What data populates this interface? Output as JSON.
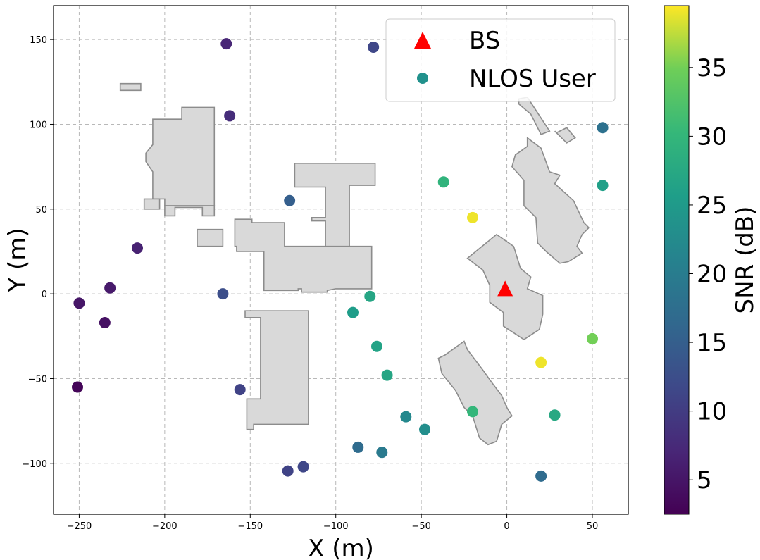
{
  "chart_data": {
    "type": "scatter",
    "xlabel": "X (m)",
    "ylabel": "Y (m)",
    "xlim": [
      -265,
      71
    ],
    "ylim": [
      -130,
      170
    ],
    "x_ticks": [
      -250,
      -200,
      -150,
      -100,
      -50,
      0,
      50
    ],
    "x_tick_labels": [
      "−250",
      "−200",
      "−150",
      "−100",
      "−50",
      "0",
      "50"
    ],
    "y_ticks": [
      -100,
      -50,
      0,
      50,
      100,
      150
    ],
    "y_tick_labels": [
      "−100",
      "−50",
      "0",
      "50",
      "100",
      "150"
    ],
    "grid": true,
    "legend": {
      "placement": "top-right",
      "entries": [
        {
          "label": "BS",
          "marker": "triangle",
          "color": "#ff0000"
        },
        {
          "label": "NLOS User",
          "marker": "circle",
          "color": "#21918c"
        }
      ]
    },
    "colorbar": {
      "label": "SNR (dB)",
      "colormap": "viridis",
      "range": [
        2.5,
        39.5
      ],
      "ticks": [
        5,
        10,
        15,
        20,
        25,
        30,
        35
      ],
      "tick_labels": [
        "5",
        "10",
        "15",
        "20",
        "25",
        "30",
        "35"
      ]
    },
    "bs": {
      "x": -1,
      "y": 2
    },
    "users": [
      {
        "x": -164,
        "y": 147.5,
        "snr": 7
      },
      {
        "x": -78,
        "y": 145.5,
        "snr": 11.5
      },
      {
        "x": -162,
        "y": 105,
        "snr": 8
      },
      {
        "x": 56,
        "y": 98,
        "snr": 18
      },
      {
        "x": -37,
        "y": 66,
        "snr": 29.5
      },
      {
        "x": 56,
        "y": 64,
        "snr": 26
      },
      {
        "x": -127,
        "y": 55,
        "snr": 15
      },
      {
        "x": -20,
        "y": 45,
        "snr": 39
      },
      {
        "x": -216,
        "y": 27,
        "snr": 6.5
      },
      {
        "x": -232,
        "y": 3.5,
        "snr": 5.5
      },
      {
        "x": -166,
        "y": 0,
        "snr": 12.5
      },
      {
        "x": -80,
        "y": -1.5,
        "snr": 27
      },
      {
        "x": -250,
        "y": -5.5,
        "snr": 5
      },
      {
        "x": -90,
        "y": -11,
        "snr": 25.5
      },
      {
        "x": -235,
        "y": -17,
        "snr": 4.5
      },
      {
        "x": 50,
        "y": -26.5,
        "snr": 35
      },
      {
        "x": -76,
        "y": -31,
        "snr": 26.5
      },
      {
        "x": 20,
        "y": -40.5,
        "snr": 39
      },
      {
        "x": -70,
        "y": -48,
        "snr": 27
      },
      {
        "x": -251,
        "y": -55,
        "snr": 3
      },
      {
        "x": -156,
        "y": -56.5,
        "snr": 11
      },
      {
        "x": -20,
        "y": -69.5,
        "snr": 30
      },
      {
        "x": 28,
        "y": -71.5,
        "snr": 27.5
      },
      {
        "x": -59,
        "y": -72.5,
        "snr": 22
      },
      {
        "x": -48,
        "y": -80,
        "snr": 23
      },
      {
        "x": -87,
        "y": -90.5,
        "snr": 17
      },
      {
        "x": -73,
        "y": -93.5,
        "snr": 19.5
      },
      {
        "x": -119,
        "y": -102,
        "snr": 11.5
      },
      {
        "x": -128,
        "y": -104.5,
        "snr": 11
      },
      {
        "x": 20,
        "y": -107.5,
        "snr": 17
      }
    ],
    "buildings": [
      {
        "points": [
          [
            -226,
            124
          ],
          [
            -214,
            124
          ],
          [
            -214,
            120
          ],
          [
            -226,
            120
          ]
        ]
      },
      {
        "points": [
          [
            -190,
            110
          ],
          [
            -171,
            110
          ],
          [
            -171,
            52
          ],
          [
            -200,
            52
          ],
          [
            -200,
            56
          ],
          [
            -207,
            56
          ],
          [
            -207,
            72
          ],
          [
            -211,
            78
          ],
          [
            -211,
            83
          ],
          [
            -207,
            88
          ],
          [
            -207,
            103
          ],
          [
            -190,
            103
          ]
        ]
      },
      {
        "points": [
          [
            -212,
            56
          ],
          [
            -203,
            56
          ],
          [
            -203,
            50
          ],
          [
            -212,
            50
          ]
        ]
      },
      {
        "points": [
          [
            -200,
            52
          ],
          [
            -171,
            52
          ],
          [
            -171,
            46
          ],
          [
            -178,
            46
          ],
          [
            -178,
            51
          ],
          [
            -194,
            51
          ],
          [
            -194,
            46
          ],
          [
            -200,
            46
          ]
        ]
      },
      {
        "points": [
          [
            -181,
            38
          ],
          [
            -166,
            38
          ],
          [
            -166,
            28
          ],
          [
            -181,
            28
          ]
        ]
      },
      {
        "points": [
          [
            -159,
            44
          ],
          [
            -149,
            44
          ],
          [
            -149,
            42
          ],
          [
            -130,
            42
          ],
          [
            -130,
            28
          ],
          [
            -100,
            28
          ],
          [
            -100,
            32
          ],
          [
            -94,
            32
          ],
          [
            -94,
            28
          ],
          [
            -79,
            28
          ],
          [
            -79,
            3
          ],
          [
            -100,
            3
          ],
          [
            -105,
            2
          ],
          [
            -105,
            1
          ],
          [
            -120,
            1
          ],
          [
            -120,
            3
          ],
          [
            -122,
            3
          ],
          [
            -122,
            2
          ],
          [
            -142,
            2
          ],
          [
            -142,
            25
          ],
          [
            -158,
            25
          ],
          [
            -158,
            28
          ],
          [
            -159,
            28
          ]
        ]
      },
      {
        "points": [
          [
            -124,
            77
          ],
          [
            -77,
            77
          ],
          [
            -77,
            64
          ],
          [
            -92,
            64
          ],
          [
            -92,
            28
          ],
          [
            -106,
            28
          ],
          [
            -106,
            43
          ],
          [
            -114,
            43
          ],
          [
            -114,
            45
          ],
          [
            -106,
            45
          ],
          [
            -106,
            63
          ],
          [
            -124,
            63
          ]
        ]
      },
      {
        "points": [
          [
            -153,
            -10
          ],
          [
            -116,
            -10
          ],
          [
            -116,
            -77
          ],
          [
            -148,
            -77
          ],
          [
            -148,
            -80
          ],
          [
            -152,
            -80
          ],
          [
            -152,
            -62
          ],
          [
            -144,
            -62
          ],
          [
            -144,
            -14
          ],
          [
            -153,
            -14
          ]
        ]
      },
      {
        "points": [
          [
            7,
            115
          ],
          [
            12,
            116
          ],
          [
            25,
            96
          ],
          [
            20,
            94
          ],
          [
            14,
            106
          ],
          [
            7,
            112
          ]
        ]
      },
      {
        "points": [
          [
            29,
            95
          ],
          [
            35,
            98
          ],
          [
            40,
            92
          ],
          [
            35,
            89
          ],
          [
            28,
            96
          ]
        ]
      },
      {
        "points": [
          [
            12,
            92
          ],
          [
            20,
            86
          ],
          [
            25,
            72
          ],
          [
            31,
            70
          ],
          [
            28,
            65
          ],
          [
            39,
            55
          ],
          [
            45,
            42
          ],
          [
            48,
            39
          ],
          [
            44,
            35
          ],
          [
            41,
            28
          ],
          [
            44,
            24
          ],
          [
            36,
            19
          ],
          [
            31,
            18
          ],
          [
            23,
            25
          ],
          [
            18,
            30
          ],
          [
            17,
            45
          ],
          [
            10,
            52
          ],
          [
            10,
            67
          ],
          [
            3,
            75
          ],
          [
            5,
            82
          ],
          [
            12,
            87
          ]
        ]
      },
      {
        "points": [
          [
            -6,
            35
          ],
          [
            4,
            28
          ],
          [
            8,
            15
          ],
          [
            14,
            10
          ],
          [
            12,
            3
          ],
          [
            21,
            -1
          ],
          [
            21,
            -12
          ],
          [
            19,
            -21
          ],
          [
            10,
            -27
          ],
          [
            -2,
            -19
          ],
          [
            -2,
            -11
          ],
          [
            -10,
            -5
          ],
          [
            -10,
            5
          ],
          [
            -14,
            14
          ],
          [
            -23,
            21
          ]
        ]
      },
      {
        "points": [
          [
            -25,
            -28
          ],
          [
            -36,
            -36
          ],
          [
            -40,
            -38
          ],
          [
            -38,
            -47
          ],
          [
            -30,
            -57
          ],
          [
            -25,
            -67
          ],
          [
            -20,
            -72
          ],
          [
            -16,
            -85
          ],
          [
            -11,
            -89
          ],
          [
            -6,
            -87
          ],
          [
            -3,
            -77
          ],
          [
            3,
            -72
          ],
          [
            0,
            -67
          ],
          [
            -3,
            -60
          ],
          [
            -9,
            -52
          ],
          [
            -14,
            -45
          ],
          [
            -23,
            -33
          ]
        ]
      }
    ]
  }
}
